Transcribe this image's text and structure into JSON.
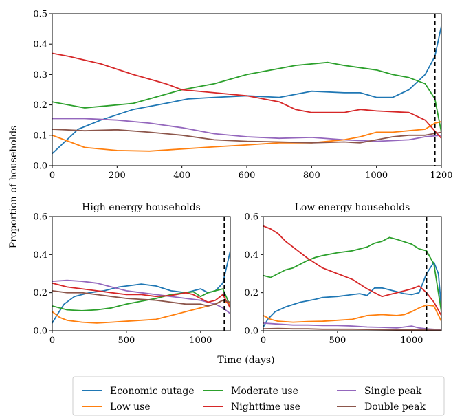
{
  "figure": {
    "ylabel": "Proportion of households",
    "xlabel": "Time (days)"
  },
  "legend": [
    {
      "name": "Economic outage",
      "color": "#1f77b4"
    },
    {
      "name": "Moderate use",
      "color": "#2ca02c"
    },
    {
      "name": "Single peak",
      "color": "#9467bd"
    },
    {
      "name": "Low use",
      "color": "#ff7f0e"
    },
    {
      "name": "Nighttime use",
      "color": "#d62728"
    },
    {
      "name": "Double peak",
      "color": "#8c564b"
    }
  ],
  "chart_data": [
    {
      "id": "main",
      "type": "line",
      "title": "",
      "xlim": [
        0,
        1200
      ],
      "ylim": [
        0,
        0.5
      ],
      "xticks": [
        0,
        200,
        400,
        600,
        800,
        1000,
        1200
      ],
      "yticks": [
        0.0,
        0.1,
        0.2,
        0.3,
        0.4,
        0.5
      ],
      "xtick_labels": [
        "0",
        "200",
        "400",
        "600",
        "800",
        "1000",
        "1200"
      ],
      "ytick_labels": [
        "0.0",
        "0.1",
        "0.2",
        "0.3",
        "0.4",
        "0.5"
      ],
      "vline": 1180,
      "series": [
        {
          "name": "Economic outage",
          "color": "#1f77b4",
          "x": [
            0,
            30,
            80,
            150,
            250,
            350,
            420,
            500,
            600,
            700,
            800,
            900,
            950,
            1000,
            1050,
            1100,
            1150,
            1180,
            1200
          ],
          "y": [
            0.04,
            0.07,
            0.12,
            0.15,
            0.185,
            0.205,
            0.22,
            0.225,
            0.23,
            0.225,
            0.245,
            0.24,
            0.24,
            0.225,
            0.225,
            0.25,
            0.3,
            0.36,
            0.46
          ]
        },
        {
          "name": "Moderate use",
          "color": "#2ca02c",
          "x": [
            0,
            50,
            100,
            150,
            250,
            350,
            400,
            500,
            600,
            700,
            750,
            850,
            900,
            1000,
            1050,
            1100,
            1150,
            1180,
            1200
          ],
          "y": [
            0.21,
            0.2,
            0.19,
            0.195,
            0.205,
            0.235,
            0.25,
            0.27,
            0.3,
            0.32,
            0.33,
            0.34,
            0.33,
            0.315,
            0.3,
            0.29,
            0.27,
            0.22,
            0.11
          ]
        },
        {
          "name": "Single peak",
          "color": "#9467bd",
          "x": [
            0,
            100,
            200,
            300,
            400,
            500,
            600,
            700,
            800,
            900,
            1000,
            1100,
            1150,
            1200
          ],
          "y": [
            0.155,
            0.155,
            0.15,
            0.14,
            0.125,
            0.105,
            0.095,
            0.09,
            0.093,
            0.085,
            0.08,
            0.085,
            0.095,
            0.1
          ]
        },
        {
          "name": "Low use",
          "color": "#ff7f0e",
          "x": [
            0,
            50,
            100,
            200,
            300,
            400,
            500,
            600,
            700,
            800,
            900,
            950,
            1000,
            1050,
            1100,
            1150,
            1180,
            1200
          ],
          "y": [
            0.1,
            0.08,
            0.06,
            0.05,
            0.048,
            0.055,
            0.062,
            0.068,
            0.075,
            0.075,
            0.085,
            0.095,
            0.11,
            0.11,
            0.115,
            0.12,
            0.14,
            0.145
          ]
        },
        {
          "name": "Nighttime use",
          "color": "#d62728",
          "x": [
            0,
            50,
            150,
            250,
            350,
            400,
            500,
            600,
            700,
            750,
            800,
            900,
            950,
            1000,
            1100,
            1150,
            1200
          ],
          "y": [
            0.37,
            0.36,
            0.335,
            0.3,
            0.27,
            0.25,
            0.24,
            0.23,
            0.21,
            0.185,
            0.175,
            0.175,
            0.185,
            0.18,
            0.175,
            0.15,
            0.09
          ]
        },
        {
          "name": "Double peak",
          "color": "#8c564b",
          "x": [
            0,
            100,
            200,
            300,
            400,
            500,
            600,
            700,
            800,
            900,
            950,
            1000,
            1050,
            1100,
            1150,
            1200
          ],
          "y": [
            0.12,
            0.115,
            0.118,
            0.11,
            0.1,
            0.085,
            0.08,
            0.078,
            0.075,
            0.078,
            0.075,
            0.085,
            0.095,
            0.1,
            0.1,
            0.11
          ]
        }
      ]
    },
    {
      "id": "high",
      "type": "line",
      "title": "High energy households",
      "xlim": [
        0,
        1200
      ],
      "ylim": [
        0,
        0.6
      ],
      "xticks": [
        0,
        500,
        1000
      ],
      "yticks": [
        0.0,
        0.2,
        0.4,
        0.6
      ],
      "xtick_labels": [
        "0",
        "500",
        "1000"
      ],
      "ytick_labels": [
        "0.0",
        "0.2",
        "0.4",
        "0.6"
      ],
      "vline": 1160,
      "series": [
        {
          "name": "Economic outage",
          "color": "#1f77b4",
          "x": [
            0,
            30,
            80,
            150,
            250,
            350,
            450,
            550,
            600,
            700,
            800,
            900,
            1000,
            1050,
            1100,
            1150,
            1200
          ],
          "y": [
            0.04,
            0.08,
            0.14,
            0.18,
            0.2,
            0.21,
            0.23,
            0.24,
            0.245,
            0.235,
            0.21,
            0.2,
            0.22,
            0.2,
            0.21,
            0.25,
            0.42
          ]
        },
        {
          "name": "Moderate use",
          "color": "#2ca02c",
          "x": [
            0,
            50,
            100,
            200,
            300,
            400,
            500,
            600,
            700,
            800,
            900,
            950,
            1000,
            1050,
            1100,
            1150,
            1200
          ],
          "y": [
            0.13,
            0.12,
            0.11,
            0.105,
            0.11,
            0.12,
            0.14,
            0.155,
            0.17,
            0.19,
            0.2,
            0.205,
            0.18,
            0.2,
            0.21,
            0.22,
            0.13
          ]
        },
        {
          "name": "Single peak",
          "color": "#9467bd",
          "x": [
            0,
            100,
            200,
            300,
            400,
            500,
            600,
            700,
            800,
            900,
            1000,
            1050,
            1100,
            1150,
            1200
          ],
          "y": [
            0.26,
            0.265,
            0.26,
            0.25,
            0.23,
            0.21,
            0.2,
            0.19,
            0.18,
            0.17,
            0.16,
            0.15,
            0.14,
            0.12,
            0.09
          ]
        },
        {
          "name": "Low use",
          "color": "#ff7f0e",
          "x": [
            0,
            50,
            100,
            200,
            300,
            400,
            500,
            600,
            700,
            800,
            900,
            1000,
            1050,
            1100,
            1150,
            1200
          ],
          "y": [
            0.1,
            0.07,
            0.055,
            0.045,
            0.04,
            0.045,
            0.05,
            0.055,
            0.06,
            0.08,
            0.1,
            0.12,
            0.13,
            0.14,
            0.16,
            0.14
          ]
        },
        {
          "name": "Nighttime use",
          "color": "#d62728",
          "x": [
            0,
            100,
            200,
            300,
            400,
            500,
            600,
            700,
            800,
            900,
            950,
            1000,
            1050,
            1100,
            1150,
            1200
          ],
          "y": [
            0.25,
            0.23,
            0.22,
            0.21,
            0.2,
            0.19,
            0.19,
            0.18,
            0.185,
            0.2,
            0.19,
            0.17,
            0.15,
            0.16,
            0.19,
            0.12
          ]
        },
        {
          "name": "Double peak",
          "color": "#8c564b",
          "x": [
            0,
            100,
            200,
            300,
            400,
            500,
            600,
            700,
            800,
            900,
            1000,
            1050,
            1100,
            1150,
            1200
          ],
          "y": [
            0.21,
            0.2,
            0.2,
            0.19,
            0.18,
            0.17,
            0.165,
            0.16,
            0.15,
            0.14,
            0.14,
            0.13,
            0.14,
            0.16,
            0.15
          ]
        }
      ]
    },
    {
      "id": "low",
      "type": "line",
      "title": "Low energy households",
      "xlim": [
        0,
        1200
      ],
      "ylim": [
        0,
        0.6
      ],
      "xticks": [
        0,
        500,
        1000
      ],
      "yticks": [
        0.0,
        0.2,
        0.4,
        0.6
      ],
      "xtick_labels": [
        "0",
        "500",
        "1000"
      ],
      "ytick_labels": [
        "0.0",
        "0.2",
        "0.4",
        "0.6"
      ],
      "vline": 1100,
      "series": [
        {
          "name": "Economic outage",
          "color": "#1f77b4",
          "x": [
            0,
            30,
            80,
            150,
            250,
            350,
            400,
            500,
            600,
            650,
            700,
            750,
            800,
            900,
            950,
            1000,
            1050,
            1100,
            1150,
            1180,
            1200
          ],
          "y": [
            0.02,
            0.06,
            0.1,
            0.125,
            0.15,
            0.165,
            0.175,
            0.18,
            0.19,
            0.195,
            0.185,
            0.225,
            0.225,
            0.205,
            0.195,
            0.19,
            0.2,
            0.3,
            0.36,
            0.3,
            0.12
          ]
        },
        {
          "name": "Moderate use",
          "color": "#2ca02c",
          "x": [
            0,
            50,
            100,
            150,
            200,
            300,
            350,
            400,
            500,
            600,
            700,
            750,
            800,
            850,
            900,
            1000,
            1050,
            1100,
            1150,
            1180,
            1200
          ],
          "y": [
            0.29,
            0.28,
            0.3,
            0.32,
            0.33,
            0.37,
            0.385,
            0.395,
            0.41,
            0.42,
            0.44,
            0.46,
            0.47,
            0.49,
            0.48,
            0.455,
            0.43,
            0.42,
            0.35,
            0.2,
            0.1
          ]
        },
        {
          "name": "Single peak",
          "color": "#9467bd",
          "x": [
            0,
            100,
            200,
            300,
            400,
            500,
            600,
            700,
            800,
            900,
            1000,
            1050,
            1100,
            1200
          ],
          "y": [
            0.04,
            0.035,
            0.03,
            0.03,
            0.028,
            0.028,
            0.025,
            0.02,
            0.018,
            0.015,
            0.025,
            0.015,
            0.01,
            0.005
          ]
        },
        {
          "name": "Low use",
          "color": "#ff7f0e",
          "x": [
            0,
            50,
            100,
            200,
            300,
            400,
            500,
            600,
            700,
            800,
            900,
            950,
            1000,
            1050,
            1100,
            1150,
            1200
          ],
          "y": [
            0.08,
            0.06,
            0.05,
            0.045,
            0.048,
            0.05,
            0.055,
            0.06,
            0.08,
            0.085,
            0.08,
            0.085,
            0.1,
            0.12,
            0.135,
            0.13,
            0.05
          ]
        },
        {
          "name": "Nighttime use",
          "color": "#d62728",
          "x": [
            0,
            50,
            100,
            150,
            200,
            300,
            400,
            500,
            600,
            700,
            750,
            800,
            850,
            900,
            1000,
            1050,
            1100,
            1150,
            1200
          ],
          "y": [
            0.55,
            0.535,
            0.51,
            0.47,
            0.44,
            0.38,
            0.33,
            0.3,
            0.27,
            0.22,
            0.2,
            0.18,
            0.19,
            0.2,
            0.22,
            0.235,
            0.2,
            0.15,
            0.08
          ]
        },
        {
          "name": "Double peak",
          "color": "#8c564b",
          "x": [
            0,
            100,
            200,
            300,
            400,
            500,
            600,
            700,
            800,
            900,
            1000,
            1100,
            1200
          ],
          "y": [
            0.01,
            0.012,
            0.01,
            0.01,
            0.008,
            0.008,
            0.008,
            0.007,
            0.006,
            0.005,
            0.005,
            0.004,
            0.003
          ]
        }
      ]
    }
  ]
}
